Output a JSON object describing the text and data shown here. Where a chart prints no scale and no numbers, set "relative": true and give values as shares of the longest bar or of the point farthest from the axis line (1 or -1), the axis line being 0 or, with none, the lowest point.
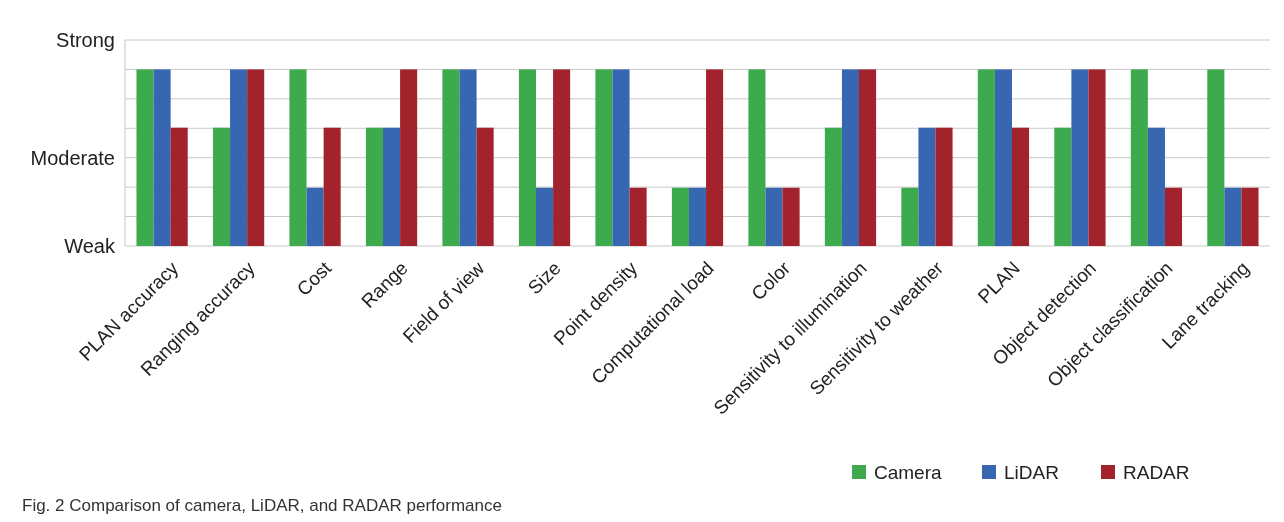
{
  "chart_data": {
    "type": "bar",
    "relative": true,
    "categories": [
      "PLAN accuracy",
      "Ranging accuracy",
      "Cost",
      "Range",
      "Field of view",
      "Size",
      "Point density",
      "Computational load",
      "Color",
      "Sensitivity to illumination",
      "Sensitivity to weather",
      "PLAN",
      "Object detection",
      "Object classification",
      "Lane tracking"
    ],
    "series": [
      {
        "name": "Camera",
        "color": "#3daa4e",
        "values": [
          1,
          0.67,
          1,
          0.67,
          1,
          1,
          1,
          0.33,
          1,
          0.67,
          0.33,
          1,
          0.67,
          1,
          1
        ]
      },
      {
        "name": "LiDAR",
        "color": "#3767b0",
        "values": [
          1,
          1,
          0.33,
          0.67,
          1,
          0.33,
          1,
          0.33,
          0.33,
          1,
          0.67,
          1,
          1,
          0.67,
          0.33
        ]
      },
      {
        "name": "RADAR",
        "color": "#a3232c",
        "values": [
          0.67,
          1,
          0.67,
          1,
          0.67,
          1,
          0.33,
          1,
          0.33,
          1,
          0.67,
          0.67,
          1,
          0.33,
          0.33
        ]
      }
    ],
    "grid": "y",
    "legend": "bottom right",
    "annotations": [
      "Strong",
      "Moderate",
      "Weak",
      "Fig. 2  Comparison of camera, LiDAR, and RADAR performance"
    ]
  }
}
